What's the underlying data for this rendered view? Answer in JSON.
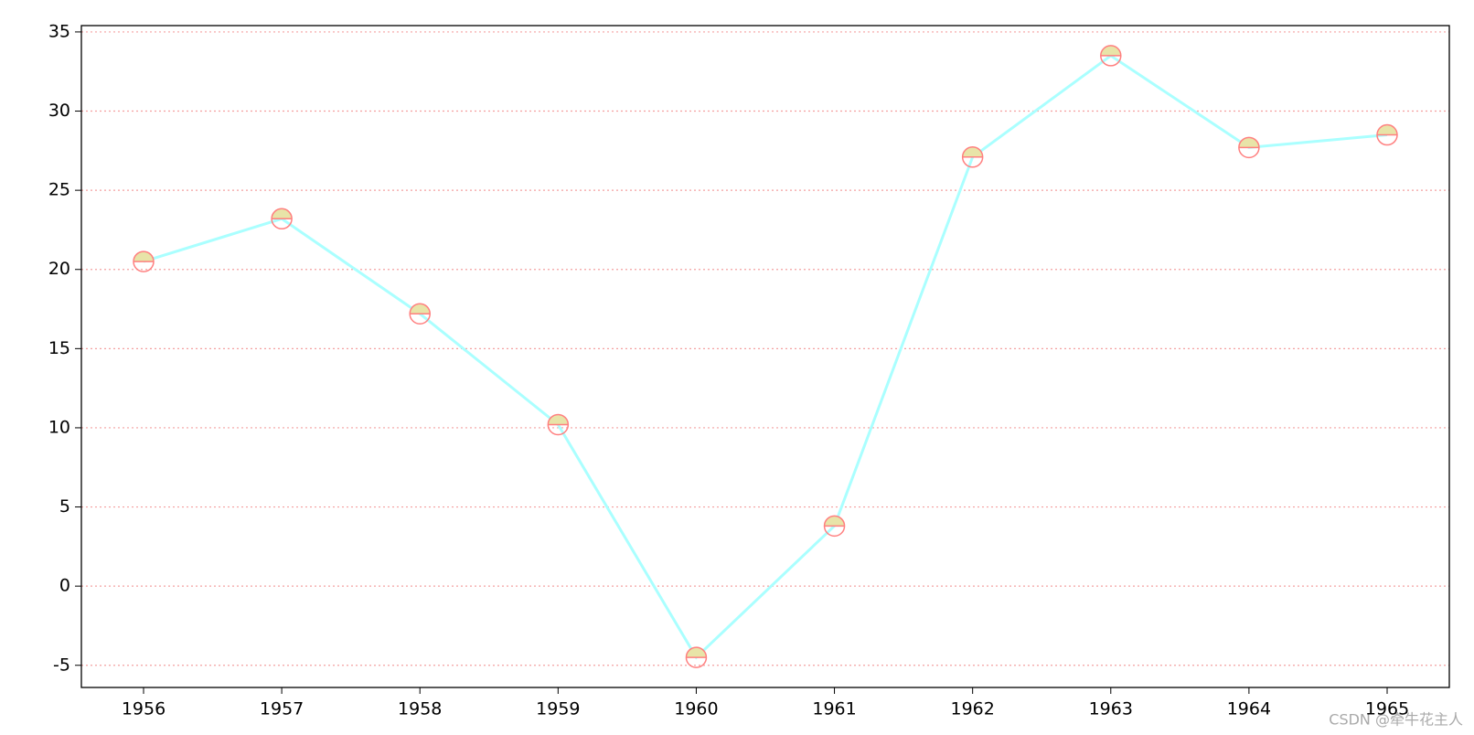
{
  "chart_data": {
    "type": "line",
    "x": [
      1956,
      1957,
      1958,
      1959,
      1960,
      1961,
      1962,
      1963,
      1964,
      1965
    ],
    "series": [
      {
        "color": "#aaffff",
        "marker_face_color": "#e8e4a8",
        "marker_edge_color": "#ff8080",
        "values": [
          20.5,
          23.2,
          17.2,
          10.2,
          -4.5,
          3.8,
          27.1,
          33.5,
          27.7,
          28.5
        ]
      }
    ],
    "xlim": [
      1955.55,
      1965.45
    ],
    "xticks": [
      1956,
      1957,
      1958,
      1959,
      1960,
      1961,
      1962,
      1963,
      1964,
      1965
    ],
    "ylim": [
      -6.4,
      35.4
    ],
    "yticks": [
      -5,
      0,
      5,
      10,
      15,
      20,
      25,
      30,
      35
    ],
    "grid": true,
    "grid_color": "#f4a0a0",
    "watermark": "CSDN @牵牛花主人"
  }
}
